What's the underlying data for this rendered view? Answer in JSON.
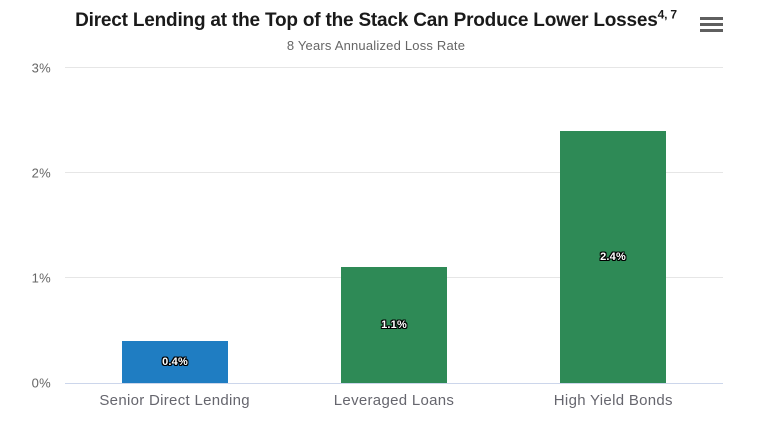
{
  "toolbar": {
    "menu_icon": "hamburger-menu"
  },
  "chart_data": {
    "type": "bar",
    "title": "Direct Lending at the Top of the Stack Can Produce Lower Losses",
    "title_superscript": "4, 7",
    "subtitle": "8 Years Annualized Loss Rate",
    "categories": [
      "Senior Direct Lending",
      "Leveraged Loans",
      "High Yield Bonds"
    ],
    "values": [
      0.4,
      1.1,
      2.4
    ],
    "data_labels": [
      "0.4%",
      "1.1%",
      "2.4%"
    ],
    "bar_colors": [
      "#1f7dc2",
      "#2e8a56",
      "#2e8a56"
    ],
    "xlabel": "",
    "ylabel": "",
    "ylim": [
      0,
      3
    ],
    "yticks": [
      0,
      1,
      2,
      3
    ],
    "ytick_labels": [
      "0%",
      "1%",
      "2%",
      "3%"
    ],
    "grid": true,
    "legend": false,
    "gridline_color": "#e6e6e6",
    "axis_line_color": "#ccd6eb",
    "axis_text_color": "#666666",
    "title_color": "#1a1a1a",
    "data_label_color": "#ffffff"
  }
}
